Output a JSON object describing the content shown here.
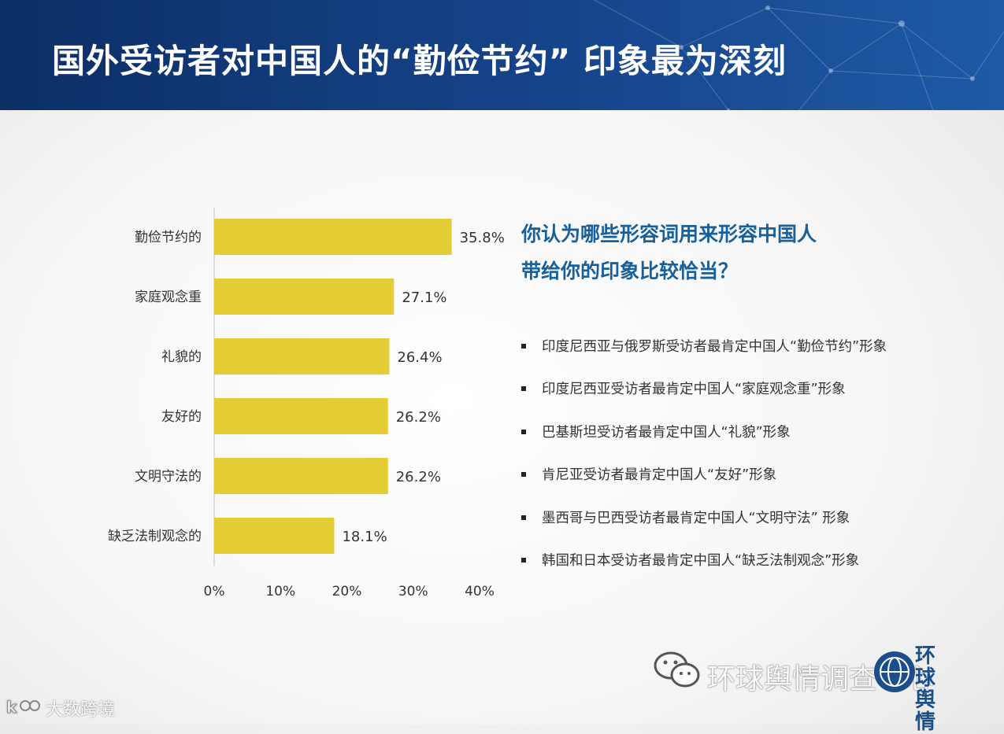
{
  "header": {
    "title": "国外受访者对中国人的“勤俭节约” 印象最为深刻"
  },
  "question": {
    "line1": "你认为哪些形容词用来形容中国人",
    "line2": "带给你的印象比较恰当？"
  },
  "notes": [
    "印度尼西亚与俄罗斯受访者最肯定中国人“勤俭节约”形象",
    "印度尼西亚受访者最肯定中国人“家庭观念重”形象",
    "巴基斯坦受访者最肯定中国人“礼貌”形象",
    "肯尼亚受访者最肯定中国人“友好”形象",
    "墨西哥与巴西受访者最肯定中国人“文明守法” 形象",
    "韩国和日本受访者最肯定中国人“缺乏法制观念”形象"
  ],
  "chart_data": {
    "type": "bar",
    "orientation": "horizontal",
    "categories": [
      "勤俭节约的",
      "家庭观念重",
      "礼貌的",
      "友好的",
      "文明守法的",
      "缺乏法制观念的"
    ],
    "values": [
      35.8,
      27.1,
      26.4,
      26.2,
      26.2,
      18.1
    ],
    "value_labels": [
      "35.8%",
      "27.1%",
      "26.4%",
      "26.2%",
      "26.2%",
      "18.1%"
    ],
    "xticks": [
      "0%",
      "10%",
      "20%",
      "30%",
      "40%"
    ],
    "xlim": [
      0,
      40
    ],
    "bar_color": "#e3cc34",
    "grid": false,
    "legend": "none"
  },
  "watermarks": {
    "wechat": "环球舆情调查中心",
    "logo": "环球舆情",
    "corner": "大数跨境"
  },
  "colors": {
    "header_bg": "#16448a",
    "question_text": "#17609a"
  }
}
